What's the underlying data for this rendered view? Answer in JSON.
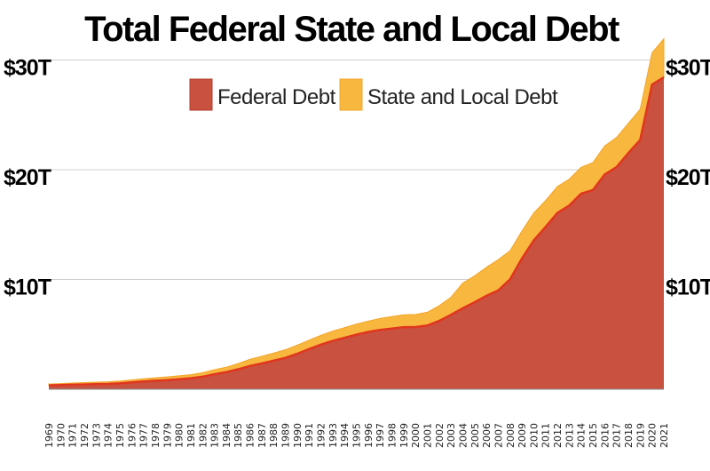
{
  "chart_data": {
    "type": "area",
    "title": "Total Federal State and Local Debt",
    "xlabel": "",
    "ylabel": "",
    "stacked": true,
    "grid": true,
    "legend_placement": "top-center",
    "xlim": [
      1969,
      2021
    ],
    "ylim": [
      0,
      30
    ],
    "yticks": [
      {
        "value": 10,
        "label": "$10T"
      },
      {
        "value": 20,
        "label": "$20T"
      },
      {
        "value": 30,
        "label": "$30T"
      }
    ],
    "x": [
      1969,
      1970,
      1971,
      1972,
      1973,
      1974,
      1975,
      1976,
      1977,
      1978,
      1979,
      1980,
      1981,
      1982,
      1983,
      1984,
      1985,
      1986,
      1987,
      1988,
      1989,
      1990,
      1991,
      1992,
      1993,
      1994,
      1995,
      1996,
      1997,
      1998,
      1999,
      2000,
      2001,
      2002,
      2003,
      2004,
      2005,
      2006,
      2007,
      2008,
      2009,
      2010,
      2011,
      2012,
      2013,
      2014,
      2015,
      2016,
      2017,
      2018,
      2019,
      2020,
      2021
    ],
    "x_tick_labels": [
      "1969",
      "1970",
      "1971",
      "1972",
      "1973",
      "1974",
      "1975",
      "1976",
      "1977",
      "1978",
      "1979",
      "1980",
      "1981",
      "1982",
      "1983",
      "1984",
      "1985",
      "1986",
      "1987",
      "1988",
      "1989",
      "1990",
      "1991",
      "1992",
      "1993",
      "1994",
      "1995",
      "1996",
      "1997",
      "1998",
      "1999",
      "2000",
      "2001",
      "2002",
      "2003",
      "2004",
      "2005",
      "2006",
      "2007",
      "2008",
      "2009",
      "2010",
      "2011",
      "2012",
      "2013",
      "2014",
      "2015",
      "2016",
      "2017",
      "2018",
      "2019",
      "2020",
      "2021"
    ],
    "series": [
      {
        "name": "Federal Debt",
        "color": "#c9513f",
        "values": [
          0.35,
          0.38,
          0.41,
          0.44,
          0.47,
          0.49,
          0.54,
          0.63,
          0.71,
          0.78,
          0.83,
          0.91,
          1.0,
          1.14,
          1.37,
          1.56,
          1.82,
          2.12,
          2.35,
          2.6,
          2.86,
          3.23,
          3.66,
          4.06,
          4.41,
          4.69,
          4.97,
          5.22,
          5.41,
          5.53,
          5.66,
          5.67,
          5.81,
          6.23,
          6.78,
          7.38,
          7.93,
          8.51,
          9.01,
          10.02,
          11.91,
          13.56,
          14.79,
          16.07,
          16.74,
          17.82,
          18.15,
          19.57,
          20.24,
          21.52,
          22.72,
          27.75,
          28.43
        ]
      },
      {
        "name": "State and Local Debt",
        "color": "#f8b73e",
        "values": [
          0.13,
          0.14,
          0.16,
          0.17,
          0.18,
          0.19,
          0.21,
          0.22,
          0.24,
          0.26,
          0.29,
          0.31,
          0.33,
          0.37,
          0.41,
          0.44,
          0.52,
          0.6,
          0.65,
          0.69,
          0.74,
          0.78,
          0.81,
          0.85,
          0.89,
          0.92,
          0.96,
          0.99,
          1.04,
          1.09,
          1.12,
          1.14,
          1.2,
          1.38,
          1.6,
          2.3,
          2.4,
          2.6,
          2.8,
          2.6,
          2.5,
          2.5,
          2.4,
          2.4,
          2.4,
          2.4,
          2.5,
          2.6,
          2.7,
          2.7,
          2.8,
          2.9,
          3.5
        ]
      }
    ]
  }
}
